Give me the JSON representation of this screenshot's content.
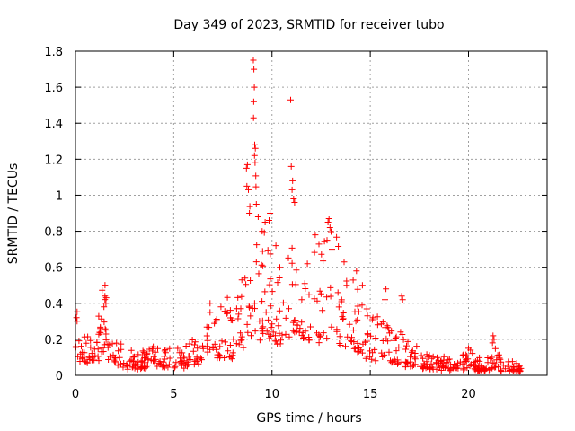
{
  "chart_data": {
    "type": "scatter",
    "title": "Day 349 of 2023, SRMTID for receiver tubo",
    "xlabel": "GPS time / hours",
    "ylabel": "SRMTID / TECUs",
    "xlim": [
      0,
      24
    ],
    "ylim": [
      0,
      1.8
    ],
    "grid": true,
    "marker": "+",
    "color": "#ff0000",
    "x_ticks": [
      "0",
      "5",
      "10",
      "15",
      "20"
    ],
    "x_tick_values": [
      0,
      5,
      10,
      15,
      20
    ],
    "y_ticks": [
      "0",
      "0.2",
      "0.4",
      "0.6",
      "0.8",
      "1",
      "1.2",
      "1.4",
      "1.6",
      "1.8"
    ],
    "y_tick_values": [
      0,
      0.2,
      0.4,
      0.6,
      0.8,
      1.0,
      1.2,
      1.4,
      1.6,
      1.8
    ],
    "profile": [
      [
        0.0,
        0.25
      ],
      [
        0.3,
        0.12
      ],
      [
        0.6,
        0.14
      ],
      [
        0.9,
        0.18
      ],
      [
        1.2,
        0.22
      ],
      [
        1.5,
        0.3
      ],
      [
        1.8,
        0.18
      ],
      [
        2.1,
        0.12
      ],
      [
        2.5,
        0.09
      ],
      [
        3.0,
        0.07
      ],
      [
        3.5,
        0.08
      ],
      [
        4.0,
        0.09
      ],
      [
        4.5,
        0.1
      ],
      [
        5.0,
        0.1
      ],
      [
        5.5,
        0.11
      ],
      [
        6.0,
        0.13
      ],
      [
        6.5,
        0.18
      ],
      [
        7.0,
        0.22
      ],
      [
        7.5,
        0.22
      ],
      [
        8.0,
        0.25
      ],
      [
        8.5,
        0.32
      ],
      [
        8.8,
        0.45
      ],
      [
        9.0,
        0.6
      ],
      [
        9.2,
        0.62
      ],
      [
        9.5,
        0.5
      ],
      [
        9.8,
        0.45
      ],
      [
        10.0,
        0.42
      ],
      [
        10.3,
        0.35
      ],
      [
        10.6,
        0.3
      ],
      [
        11.0,
        0.45
      ],
      [
        11.3,
        0.4
      ],
      [
        11.7,
        0.38
      ],
      [
        12.0,
        0.4
      ],
      [
        12.5,
        0.48
      ],
      [
        13.0,
        0.5
      ],
      [
        13.5,
        0.38
      ],
      [
        14.0,
        0.33
      ],
      [
        14.5,
        0.25
      ],
      [
        15.0,
        0.2
      ],
      [
        15.5,
        0.18
      ],
      [
        16.0,
        0.17
      ],
      [
        16.5,
        0.15
      ],
      [
        17.0,
        0.12
      ],
      [
        17.5,
        0.08
      ],
      [
        18.0,
        0.07
      ],
      [
        18.5,
        0.07
      ],
      [
        19.0,
        0.06
      ],
      [
        19.5,
        0.07
      ],
      [
        20.0,
        0.07
      ],
      [
        20.5,
        0.06
      ],
      [
        21.0,
        0.06
      ],
      [
        21.3,
        0.1
      ],
      [
        21.6,
        0.06
      ],
      [
        22.0,
        0.05
      ],
      [
        22.5,
        0.05
      ],
      [
        22.8,
        0.05
      ]
    ],
    "spikes": [
      [
        9.05,
        1.75
      ],
      [
        9.08,
        1.7
      ],
      [
        9.1,
        1.6
      ],
      [
        9.07,
        1.52
      ],
      [
        9.06,
        1.43
      ],
      [
        9.12,
        1.28
      ],
      [
        9.15,
        1.26
      ],
      [
        9.11,
        1.22
      ],
      [
        9.14,
        1.18
      ],
      [
        8.75,
        1.17
      ],
      [
        8.7,
        1.15
      ],
      [
        8.72,
        1.05
      ],
      [
        8.8,
        1.03
      ],
      [
        8.85,
        0.9
      ],
      [
        9.2,
        0.95
      ],
      [
        9.3,
        0.88
      ],
      [
        9.9,
        0.9
      ],
      [
        9.85,
        0.86
      ],
      [
        10.95,
        1.53
      ],
      [
        10.98,
        1.16
      ],
      [
        11.05,
        1.08
      ],
      [
        11.02,
        1.03
      ],
      [
        11.1,
        0.98
      ],
      [
        11.15,
        0.96
      ],
      [
        12.9,
        0.87
      ],
      [
        12.85,
        0.85
      ],
      [
        12.95,
        0.82
      ],
      [
        12.8,
        0.75
      ],
      [
        12.2,
        0.78
      ],
      [
        13.05,
        0.7
      ],
      [
        1.5,
        0.44
      ],
      [
        1.55,
        0.4
      ],
      [
        1.45,
        0.38
      ],
      [
        16.6,
        0.44
      ],
      [
        16.65,
        0.42
      ],
      [
        15.8,
        0.48
      ],
      [
        15.75,
        0.42
      ],
      [
        21.25,
        0.22
      ],
      [
        21.3,
        0.2
      ],
      [
        21.22,
        0.18
      ],
      [
        0.05,
        0.32
      ],
      [
        0.08,
        0.3
      ],
      [
        6.85,
        0.4
      ],
      [
        7.4,
        0.38
      ],
      [
        8.2,
        0.37
      ],
      [
        10.4,
        0.6
      ],
      [
        11.8,
        0.62
      ],
      [
        14.3,
        0.58
      ],
      [
        14.6,
        0.5
      ],
      [
        20.0,
        0.15
      ],
      [
        20.1,
        0.14
      ],
      [
        9.5,
        0.8
      ],
      [
        9.65,
        0.85
      ],
      [
        10.2,
        0.72
      ]
    ],
    "points_per_half_hour": 14,
    "seed": 349
  }
}
